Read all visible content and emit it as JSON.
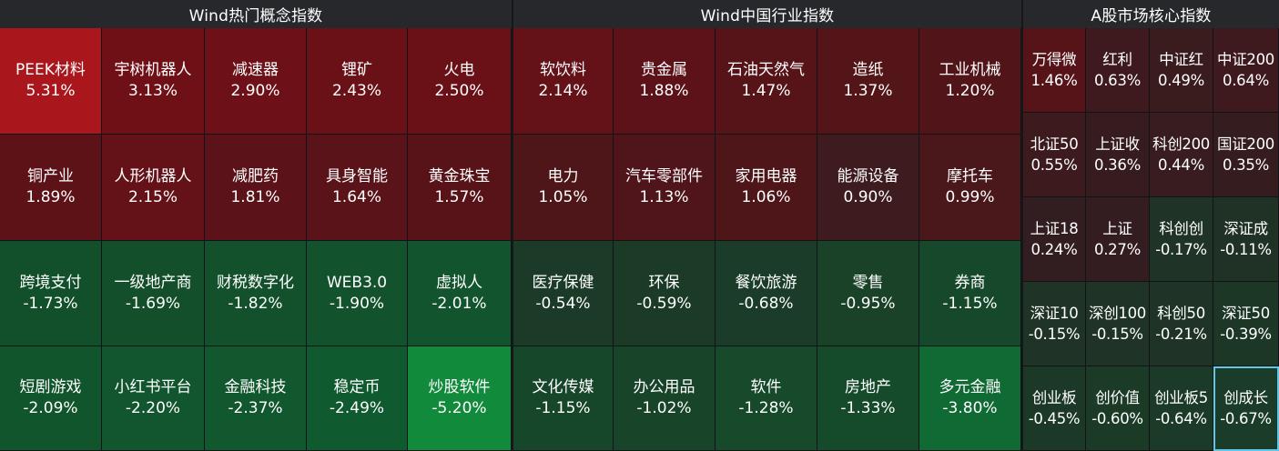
{
  "panels": [
    {
      "title": "Wind热门概念指数",
      "cells": [
        {
          "name": "PEEK材料",
          "pct": "5.31%",
          "bg": "#a9161c"
        },
        {
          "name": "宇树机器人",
          "pct": "3.13%",
          "bg": "#6f0f16"
        },
        {
          "name": "减速器",
          "pct": "2.90%",
          "bg": "#6e1017"
        },
        {
          "name": "锂矿",
          "pct": "2.43%",
          "bg": "#691117"
        },
        {
          "name": "火电",
          "pct": "2.50%",
          "bg": "#6a1017"
        },
        {
          "name": "铜产业",
          "pct": "1.89%",
          "bg": "#5c1217"
        },
        {
          "name": "人形机器人",
          "pct": "2.15%",
          "bg": "#641118"
        },
        {
          "name": "减肥药",
          "pct": "1.81%",
          "bg": "#5b1218"
        },
        {
          "name": "具身智能",
          "pct": "1.64%",
          "bg": "#591319"
        },
        {
          "name": "黄金珠宝",
          "pct": "1.57%",
          "bg": "#581319"
        },
        {
          "name": "跨境支付",
          "pct": "-1.73%",
          "bg": "#12502b"
        },
        {
          "name": "一级地产商",
          "pct": "-1.69%",
          "bg": "#134f2b"
        },
        {
          "name": "财税数字化",
          "pct": "-1.82%",
          "bg": "#12512c"
        },
        {
          "name": "WEB3.0",
          "pct": "-1.90%",
          "bg": "#12522c"
        },
        {
          "name": "虚拟人",
          "pct": "-2.01%",
          "bg": "#12542d"
        },
        {
          "name": "短剧游戏",
          "pct": "-2.09%",
          "bg": "#11552d"
        },
        {
          "name": "小红书平台",
          "pct": "-2.20%",
          "bg": "#11562e"
        },
        {
          "name": "金融科技",
          "pct": "-2.37%",
          "bg": "#11582e"
        },
        {
          "name": "稳定币",
          "pct": "-2.49%",
          "bg": "#105a2f"
        },
        {
          "name": "炒股软件",
          "pct": "-5.20%",
          "bg": "#128a3c"
        }
      ]
    },
    {
      "title": "Wind中国行业指数",
      "cells": [
        {
          "name": "软饮料",
          "pct": "2.14%",
          "bg": "#641118"
        },
        {
          "name": "贵金属",
          "pct": "1.88%",
          "bg": "#5c1218"
        },
        {
          "name": "石油天然气",
          "pct": "1.47%",
          "bg": "#561419"
        },
        {
          "name": "造纸",
          "pct": "1.37%",
          "bg": "#541519"
        },
        {
          "name": "工业机械",
          "pct": "1.20%",
          "bg": "#511519"
        },
        {
          "name": "电力",
          "pct": "1.05%",
          "bg": "#4f1619"
        },
        {
          "name": "汽车零部件",
          "pct": "1.13%",
          "bg": "#50151a"
        },
        {
          "name": "家用电器",
          "pct": "1.06%",
          "bg": "#4f1619"
        },
        {
          "name": "能源设备",
          "pct": "0.90%",
          "bg": "#3d1b1e"
        },
        {
          "name": "摩托车",
          "pct": "0.99%",
          "bg": "#4a181b"
        },
        {
          "name": "医疗保健",
          "pct": "-0.54%",
          "bg": "#1b3a27"
        },
        {
          "name": "环保",
          "pct": "-0.59%",
          "bg": "#1b3b27"
        },
        {
          "name": "餐饮旅游",
          "pct": "-0.68%",
          "bg": "#1a3c28"
        },
        {
          "name": "零售",
          "pct": "-0.95%",
          "bg": "#194229"
        },
        {
          "name": "券商",
          "pct": "-1.15%",
          "bg": "#16492b"
        },
        {
          "name": "文化传媒",
          "pct": "-1.15%",
          "bg": "#17472a"
        },
        {
          "name": "办公用品",
          "pct": "-1.02%",
          "bg": "#184429"
        },
        {
          "name": "软件",
          "pct": "-1.28%",
          "bg": "#164a2b"
        },
        {
          "name": "房地产",
          "pct": "-1.33%",
          "bg": "#154b2b"
        },
        {
          "name": "多元金融",
          "pct": "-3.80%",
          "bg": "#0f6a33"
        }
      ]
    },
    {
      "title": "A股市场核心指数",
      "cells": [
        {
          "name": "万得微",
          "pct": "1.46%",
          "bg": "#561419"
        },
        {
          "name": "红利",
          "pct": "0.63%",
          "bg": "#3e1a1e"
        },
        {
          "name": "中证红",
          "pct": "0.49%",
          "bg": "#3a1b1e"
        },
        {
          "name": "中证200",
          "pct": "0.64%",
          "bg": "#3e1a1e"
        },
        {
          "name": "北证50",
          "pct": "0.55%",
          "bg": "#3c1a1e"
        },
        {
          "name": "上证收",
          "pct": "0.36%",
          "bg": "#361c1f"
        },
        {
          "name": "科创200",
          "pct": "0.44%",
          "bg": "#381c1f"
        },
        {
          "name": "国证200",
          "pct": "0.35%",
          "bg": "#351c1f"
        },
        {
          "name": "上证18",
          "pct": "0.24%",
          "bg": "#321d20"
        },
        {
          "name": "上证",
          "pct": "0.27%",
          "bg": "#331d20"
        },
        {
          "name": "科创创",
          "pct": "-0.17%",
          "bg": "#1f3326"
        },
        {
          "name": "深证成",
          "pct": "-0.11%",
          "bg": "#203226"
        },
        {
          "name": "深证10",
          "pct": "-0.15%",
          "bg": "#1f3326"
        },
        {
          "name": "深创100",
          "pct": "-0.15%",
          "bg": "#1f3326"
        },
        {
          "name": "科创50",
          "pct": "-0.21%",
          "bg": "#1f3426"
        },
        {
          "name": "深证50",
          "pct": "-0.39%",
          "bg": "#1d3727"
        },
        {
          "name": "创业板",
          "pct": "-0.45%",
          "bg": "#1c3827"
        },
        {
          "name": "创价值",
          "pct": "-0.60%",
          "bg": "#1b3b27"
        },
        {
          "name": "创业板5",
          "pct": "-0.64%",
          "bg": "#1b3b28"
        },
        {
          "name": "创成长",
          "pct": "-0.67%",
          "bg": "#1b3c28",
          "selected": true
        }
      ]
    }
  ]
}
